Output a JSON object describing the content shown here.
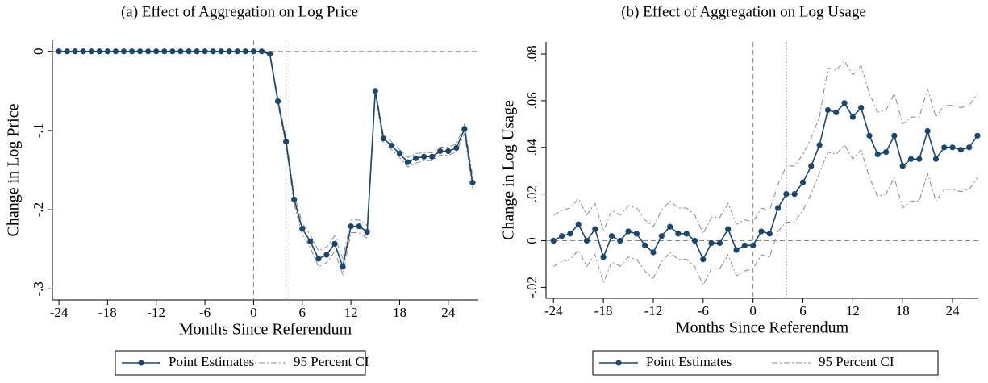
{
  "chart_data": [
    {
      "type": "line",
      "title": "(a) Effect of Aggregation on Log Price",
      "x_label": "Months Since Referendum",
      "y_label": "Change in Log Price",
      "x": [
        -24,
        -23,
        -22,
        -21,
        -20,
        -19,
        -18,
        -17,
        -16,
        -15,
        -14,
        -13,
        -12,
        -11,
        -10,
        -9,
        -8,
        -7,
        -6,
        -5,
        -4,
        -3,
        -2,
        -1,
        0,
        1,
        2,
        3,
        4,
        5,
        6,
        7,
        8,
        9,
        10,
        11,
        12,
        13,
        14,
        15,
        16,
        17,
        18,
        19,
        20,
        21,
        22,
        23,
        24,
        25,
        26,
        27
      ],
      "series": [
        {
          "name": "Point Estimates",
          "color": "#1a476f",
          "values": [
            0,
            0,
            0,
            0,
            0,
            0,
            0,
            0,
            0,
            0,
            0,
            0,
            0,
            0,
            0,
            0,
            0,
            0,
            0,
            0,
            0,
            0,
            0,
            0,
            0,
            0,
            -0.003,
            -0.063,
            -0.114,
            -0.187,
            -0.224,
            -0.24,
            -0.262,
            -0.257,
            -0.243,
            -0.272,
            -0.221,
            -0.221,
            -0.228,
            -0.05,
            -0.11,
            -0.119,
            -0.129,
            -0.14,
            -0.135,
            -0.133,
            -0.133,
            -0.126,
            -0.126,
            -0.122,
            -0.098,
            -0.166
          ]
        },
        {
          "name": "95 Percent CI",
          "color": "#8a8a8a",
          "lower": [
            0,
            0,
            0,
            0,
            0,
            0,
            0,
            0,
            0,
            0,
            0,
            0,
            0,
            0,
            0,
            0,
            0,
            0,
            0,
            0,
            0,
            0,
            0,
            0,
            0,
            0,
            -0.005,
            -0.067,
            -0.119,
            -0.193,
            -0.231,
            -0.248,
            -0.272,
            -0.267,
            -0.253,
            -0.282,
            -0.229,
            -0.229,
            -0.236,
            -0.054,
            -0.115,
            -0.124,
            -0.134,
            -0.146,
            -0.141,
            -0.138,
            -0.138,
            -0.131,
            -0.131,
            -0.127,
            -0.104,
            -0.174
          ],
          "upper": [
            0,
            0,
            0,
            0,
            0,
            0,
            0,
            0,
            0,
            0,
            0,
            0,
            0,
            0,
            0,
            0,
            0,
            0,
            0,
            0,
            0,
            0,
            0,
            0,
            0,
            0,
            -0.001,
            -0.059,
            -0.109,
            -0.181,
            -0.217,
            -0.232,
            -0.252,
            -0.247,
            -0.233,
            -0.262,
            -0.213,
            -0.213,
            -0.22,
            -0.046,
            -0.105,
            -0.114,
            -0.124,
            -0.134,
            -0.129,
            -0.128,
            -0.128,
            -0.121,
            -0.121,
            -0.117,
            -0.092,
            -0.158
          ]
        }
      ],
      "xlim": [
        -24.8,
        27.7
      ],
      "ylim": [
        -0.314,
        0.014
      ],
      "xticks": [
        -24,
        -18,
        -12,
        -6,
        0,
        6,
        12,
        18,
        24
      ],
      "yticks": [
        {
          "value": 0,
          "label": "0"
        },
        {
          "value": -0.1,
          "label": "-.1"
        },
        {
          "value": -0.2,
          "label": "-.2"
        },
        {
          "value": -0.3,
          "label": "-.3"
        }
      ],
      "reference_lines": {
        "x_dashed": 0,
        "x_dotted": 4,
        "y_dashed": 0
      }
    },
    {
      "type": "line",
      "title": "(b) Effect of Aggregation on Log Usage",
      "x_label": "Months Since Referendum",
      "y_label": "Change in Log Usage",
      "x": [
        -24,
        -23,
        -22,
        -21,
        -20,
        -19,
        -18,
        -17,
        -16,
        -15,
        -14,
        -13,
        -12,
        -11,
        -10,
        -9,
        -8,
        -7,
        -6,
        -5,
        -4,
        -3,
        -2,
        -1,
        0,
        1,
        2,
        3,
        4,
        5,
        6,
        7,
        8,
        9,
        10,
        11,
        12,
        13,
        14,
        15,
        16,
        17,
        18,
        19,
        20,
        21,
        22,
        23,
        24,
        25,
        26,
        27
      ],
      "series": [
        {
          "name": "Point Estimates",
          "color": "#1a476f",
          "values": [
            0,
            0.002,
            0.003,
            0.007,
            0,
            0.005,
            -0.007,
            0.002,
            0,
            0.004,
            0.003,
            -0.002,
            -0.005,
            0.002,
            0.006,
            0.003,
            0.003,
            0,
            -0.008,
            -0.001,
            -0.001,
            0.005,
            -0.004,
            -0.002,
            -0.002,
            0.004,
            0.003,
            0.014,
            0.02,
            0.02,
            0.025,
            0.032,
            0.041,
            0.056,
            0.055,
            0.059,
            0.053,
            0.057,
            0.045,
            0.037,
            0.038,
            0.045,
            0.032,
            0.035,
            0.035,
            0.047,
            0.035,
            0.04,
            0.04,
            0.039,
            0.04,
            0.045
          ]
        },
        {
          "name": "95 Percent CI",
          "color": "#8a8a8a",
          "lower": [
            -0.011,
            -0.009,
            -0.008,
            -0.004,
            -0.011,
            -0.006,
            -0.018,
            -0.009,
            -0.011,
            -0.007,
            -0.008,
            -0.013,
            -0.016,
            -0.009,
            -0.005,
            -0.008,
            -0.008,
            -0.011,
            -0.019,
            -0.012,
            -0.012,
            -0.006,
            -0.015,
            -0.013,
            -0.012,
            -0.006,
            -0.007,
            0.004,
            0.008,
            0.008,
            0.013,
            0.02,
            0.029,
            0.038,
            0.037,
            0.041,
            0.035,
            0.039,
            0.027,
            0.019,
            0.02,
            0.027,
            0.014,
            0.017,
            0.017,
            0.029,
            0.017,
            0.022,
            0.022,
            0.021,
            0.022,
            0.027
          ],
          "upper": [
            0.011,
            0.013,
            0.014,
            0.018,
            0.011,
            0.016,
            0.004,
            0.013,
            0.011,
            0.015,
            0.014,
            0.009,
            0.006,
            0.013,
            0.017,
            0.014,
            0.014,
            0.011,
            0.003,
            0.01,
            0.01,
            0.016,
            0.007,
            0.009,
            0.008,
            0.014,
            0.013,
            0.024,
            0.032,
            0.032,
            0.037,
            0.044,
            0.053,
            0.074,
            0.073,
            0.077,
            0.071,
            0.075,
            0.063,
            0.055,
            0.056,
            0.063,
            0.05,
            0.053,
            0.053,
            0.065,
            0.053,
            0.058,
            0.058,
            0.057,
            0.058,
            0.063
          ]
        }
      ],
      "xlim": [
        -24.9,
        27.1
      ],
      "ylim": [
        -0.0247,
        0.0852
      ],
      "xticks": [
        -24,
        -18,
        -12,
        -6,
        0,
        6,
        12,
        18,
        24
      ],
      "yticks": [
        {
          "value": 0.08,
          "label": ".08"
        },
        {
          "value": 0.06,
          "label": ".06"
        },
        {
          "value": 0.04,
          "label": ".04"
        },
        {
          "value": 0.02,
          "label": ".02"
        },
        {
          "value": 0,
          "label": "0"
        },
        {
          "value": -0.02,
          "label": "-.02"
        }
      ],
      "reference_lines": {
        "x_dashed": 0,
        "x_dotted": 4,
        "y_dashed": 0
      }
    }
  ]
}
